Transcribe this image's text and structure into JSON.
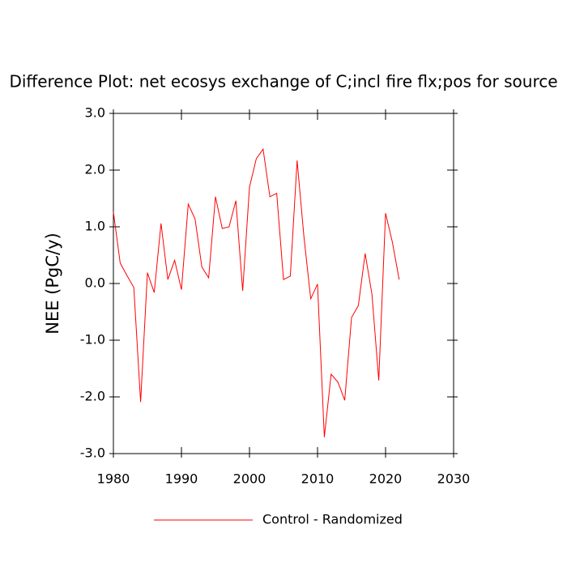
{
  "chart_data": {
    "type": "line",
    "title": "Difference Plot: net ecosys exchange of C;incl fire flx;pos for source",
    "y_label": "NEE  (PgC/y)",
    "x": [
      1980,
      1981,
      1982,
      1983,
      1984,
      1985,
      1986,
      1987,
      1988,
      1989,
      1990,
      1991,
      1992,
      1993,
      1994,
      1995,
      1996,
      1997,
      1998,
      1999,
      2000,
      2001,
      2002,
      2003,
      2004,
      2005,
      2006,
      2007,
      2008,
      2009,
      2010,
      2011,
      2012,
      2013,
      2014,
      2015,
      2016,
      2017,
      2018,
      2019,
      2020,
      2021,
      2022
    ],
    "series": [
      {
        "name": "Control - Randomized",
        "color": "#ff0000",
        "values": [
          1.26,
          0.36,
          0.14,
          -0.07,
          -2.09,
          0.19,
          -0.16,
          1.06,
          0.07,
          0.41,
          -0.11,
          1.4,
          1.14,
          0.29,
          0.1,
          1.53,
          0.97,
          1.0,
          1.46,
          -0.13,
          1.7,
          2.2,
          2.37,
          1.53,
          1.59,
          0.07,
          0.13,
          2.17,
          0.83,
          -0.27,
          -0.01,
          -2.71,
          -1.6,
          -1.74,
          -2.06,
          -0.6,
          -0.39,
          0.53,
          -0.19,
          -1.71,
          1.24,
          0.73,
          0.07
        ]
      }
    ],
    "xlim": [
      1980,
      2030
    ],
    "xticks": [
      1980,
      1990,
      2000,
      2010,
      2020,
      2030
    ],
    "ylim": [
      -3,
      3
    ],
    "yticks": [
      {
        "value": -3,
        "label": "-3.0"
      },
      {
        "value": -2,
        "label": "-2.0"
      },
      {
        "value": -1,
        "label": "-1.0"
      },
      {
        "value": 0,
        "label": "0.0"
      },
      {
        "value": 1,
        "label": "1.0"
      },
      {
        "value": 2,
        "label": "2.0"
      },
      {
        "value": 3,
        "label": "3.0"
      }
    ],
    "grid": false
  }
}
